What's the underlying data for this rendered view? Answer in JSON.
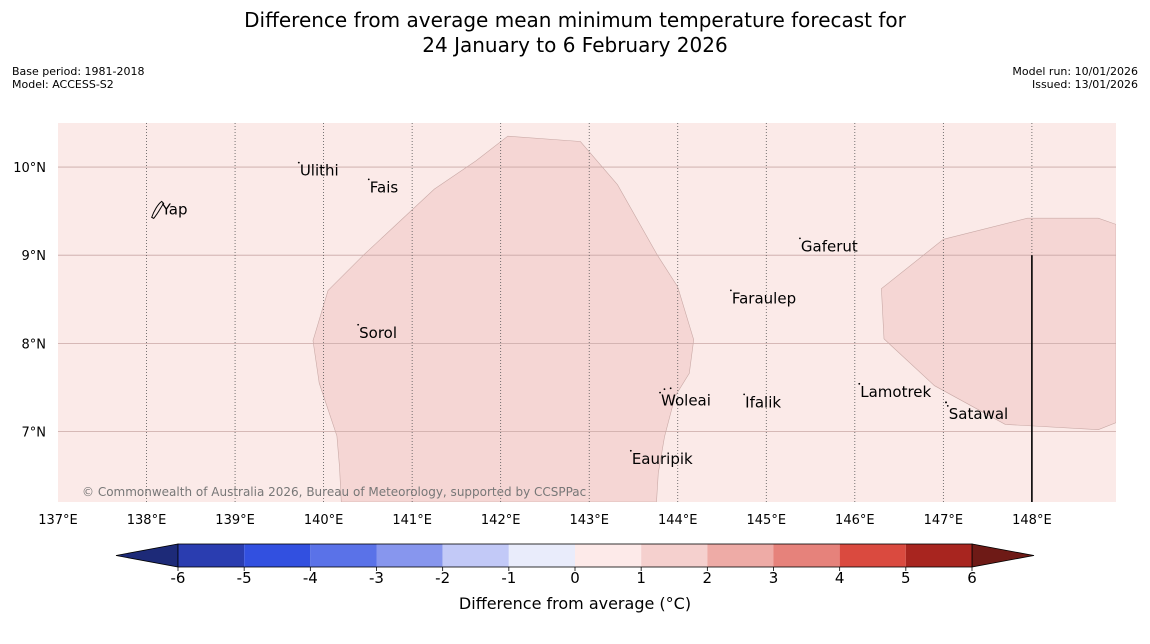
{
  "title": {
    "line1": "Difference from average mean minimum temperature forecast for",
    "line2": "24 January to 6 February 2026"
  },
  "meta_left": {
    "base_period": "Base period: 1981-2018",
    "model": "Model: ACCESS-S2"
  },
  "meta_right": {
    "model_run": "Model run: 10/01/2026",
    "issued": "Issued: 13/01/2026"
  },
  "map": {
    "extent": {
      "lon_min": 137.0,
      "lon_max": 148.95,
      "lat_min": 6.2,
      "lat_max": 10.5
    },
    "lon_ticks": [
      {
        "value": 137,
        "label": "137°E"
      },
      {
        "value": 138,
        "label": "138°E"
      },
      {
        "value": 139,
        "label": "139°E"
      },
      {
        "value": 140,
        "label": "140°E"
      },
      {
        "value": 141,
        "label": "141°E"
      },
      {
        "value": 142,
        "label": "142°E"
      },
      {
        "value": 143,
        "label": "143°E"
      },
      {
        "value": 144,
        "label": "144°E"
      },
      {
        "value": 145,
        "label": "145°E"
      },
      {
        "value": 146,
        "label": "146°E"
      },
      {
        "value": 147,
        "label": "147°E"
      },
      {
        "value": 148,
        "label": "148°E"
      }
    ],
    "lat_ticks": [
      {
        "value": 10,
        "label": "10°N"
      },
      {
        "value": 9,
        "label": "9°N"
      },
      {
        "value": 8,
        "label": "8°N"
      },
      {
        "value": 7,
        "label": "7°N"
      }
    ],
    "background_category": "0 to 1",
    "background_color": "#fbeae8",
    "anomaly_regions": [
      {
        "category": "1 to 2",
        "color": "#f5d6d4",
        "points": [
          [
            142.08,
            10.35
          ],
          [
            142.9,
            10.29
          ],
          [
            143.32,
            9.8
          ],
          [
            143.77,
            9.0
          ],
          [
            144.0,
            8.64
          ],
          [
            144.18,
            8.04
          ],
          [
            144.13,
            7.66
          ],
          [
            143.97,
            7.4
          ],
          [
            143.85,
            6.94
          ],
          [
            143.78,
            6.53
          ],
          [
            143.76,
            6.2
          ],
          [
            140.2,
            6.2
          ],
          [
            140.18,
            6.6
          ],
          [
            140.15,
            6.95
          ],
          [
            139.95,
            7.55
          ],
          [
            139.88,
            8.03
          ],
          [
            140.05,
            8.6
          ],
          [
            140.45,
            9.0
          ],
          [
            141.25,
            9.75
          ],
          [
            141.72,
            10.07
          ]
        ]
      },
      {
        "category": "1 to 2",
        "color": "#f5d6d4",
        "points": [
          [
            148.95,
            9.35
          ],
          [
            148.75,
            9.42
          ],
          [
            147.95,
            9.42
          ],
          [
            147.0,
            9.18
          ],
          [
            146.3,
            8.62
          ],
          [
            146.33,
            8.05
          ],
          [
            146.9,
            7.52
          ],
          [
            147.7,
            7.08
          ],
          [
            148.75,
            7.02
          ],
          [
            148.95,
            7.1
          ]
        ]
      }
    ],
    "islands": [
      {
        "name": "Yap",
        "lon": 138.16,
        "lat": 9.52,
        "dx": 5,
        "dy": 5
      },
      {
        "name": "Ulithi",
        "lon": 139.72,
        "lat": 9.96,
        "dx": 5,
        "dy": 5
      },
      {
        "name": "Fais",
        "lon": 140.51,
        "lat": 9.77,
        "dx": 5,
        "dy": 5
      },
      {
        "name": "Sorol",
        "lon": 140.39,
        "lat": 8.12,
        "dx": 5,
        "dy": 5
      },
      {
        "name": "Gaferut",
        "lon": 145.38,
        "lat": 9.1,
        "dx": 5,
        "dy": 5
      },
      {
        "name": "Faraulep",
        "lon": 144.6,
        "lat": 8.51,
        "dx": 5,
        "dy": 5
      },
      {
        "name": "Lamotrek",
        "lon": 146.05,
        "lat": 7.45,
        "dx": 5,
        "dy": 5
      },
      {
        "name": "Satawal",
        "lon": 147.05,
        "lat": 7.2,
        "dx": 5,
        "dy": 5
      },
      {
        "name": "Woleai",
        "lon": 143.8,
        "lat": 7.35,
        "dx": 5,
        "dy": 5
      },
      {
        "name": "Ifalik",
        "lon": 144.75,
        "lat": 7.33,
        "dx": 5,
        "dy": 5
      },
      {
        "name": "Eauripik",
        "lon": 143.47,
        "lat": 6.69,
        "dx": 5,
        "dy": 5
      }
    ],
    "date_line_marker_lon": 148.0,
    "copyright": "© Commonwealth of Australia 2026, Bureau of Meteorology, supported by CCSPPac"
  },
  "colorbar": {
    "title": "Difference from average (°C)",
    "boundaries": [
      -6,
      -5,
      -4,
      -3,
      -2,
      -1,
      0,
      1,
      2,
      3,
      4,
      5,
      6
    ],
    "tick_labels": [
      "-6",
      "-5",
      "-4",
      "-3",
      "-2",
      "-1",
      "0",
      "1",
      "2",
      "3",
      "4",
      "5",
      "6"
    ],
    "under_color": "#1d2a78",
    "over_color": "#6e1a16",
    "colors": [
      "#2a3db0",
      "#3250e0",
      "#5a72e8",
      "#8796ee",
      "#c2c9f7",
      "#e9ecfb",
      "#fdeae9",
      "#f5d0ce",
      "#eeaba6",
      "#e6827b",
      "#da4a3f",
      "#a8251f"
    ]
  }
}
